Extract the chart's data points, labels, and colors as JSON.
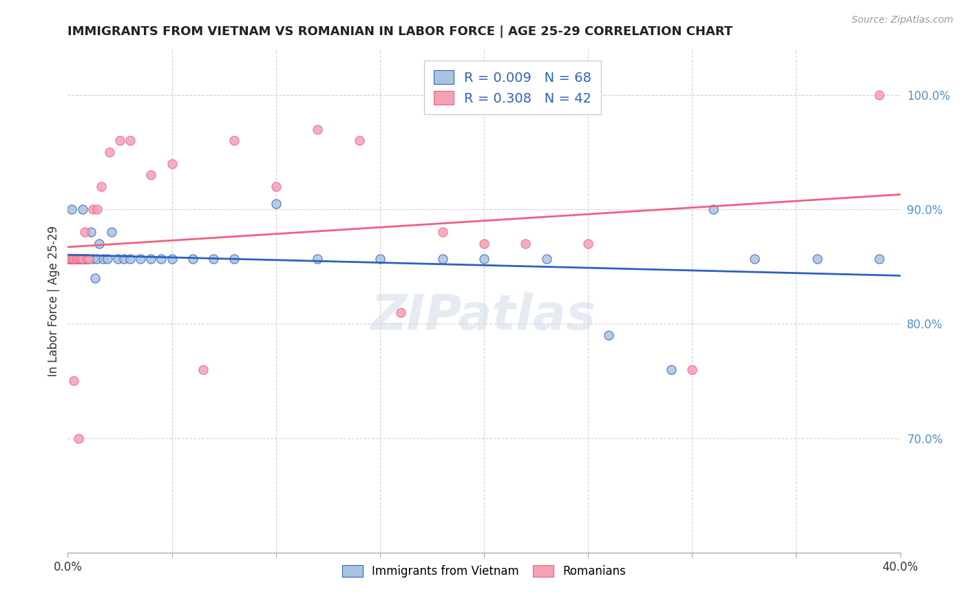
{
  "title": "IMMIGRANTS FROM VIETNAM VS ROMANIAN IN LABOR FORCE | AGE 25-29 CORRELATION CHART",
  "source": "Source: ZipAtlas.com",
  "ylabel": "In Labor Force | Age 25-29",
  "xlim": [
    0.0,
    0.4
  ],
  "ylim": [
    0.6,
    1.04
  ],
  "xticks": [
    0.0,
    0.05,
    0.1,
    0.15,
    0.2,
    0.25,
    0.3,
    0.35,
    0.4
  ],
  "xtick_labels": [
    "0.0%",
    "",
    "",
    "",
    "",
    "",
    "",
    "",
    "40.0%"
  ],
  "yticks_right": [
    0.7,
    0.8,
    0.9,
    1.0
  ],
  "ytick_right_labels": [
    "70.0%",
    "80.0%",
    "90.0%",
    "100.0%"
  ],
  "vietnam_color": "#a8c4e0",
  "romania_color": "#f4a0b5",
  "vietnam_line_color": "#3060c0",
  "romania_line_color": "#f06080",
  "legend_R_vietnam": "0.009",
  "legend_N_vietnam": "68",
  "legend_R_romania": "0.308",
  "legend_N_romania": "42",
  "watermark": "ZIPatlas",
  "vietnam_x": [
    0.0,
    0.001,
    0.001,
    0.001,
    0.001,
    0.001,
    0.001,
    0.001,
    0.001,
    0.002,
    0.002,
    0.002,
    0.002,
    0.002,
    0.002,
    0.002,
    0.002,
    0.003,
    0.003,
    0.003,
    0.003,
    0.003,
    0.004,
    0.004,
    0.004,
    0.004,
    0.005,
    0.005,
    0.005,
    0.006,
    0.006,
    0.006,
    0.007,
    0.007,
    0.008,
    0.008,
    0.009,
    0.01,
    0.011,
    0.012,
    0.013,
    0.014,
    0.015,
    0.017,
    0.019,
    0.021,
    0.024,
    0.027,
    0.03,
    0.035,
    0.04,
    0.045,
    0.05,
    0.06,
    0.07,
    0.08,
    0.1,
    0.12,
    0.15,
    0.18,
    0.2,
    0.23,
    0.26,
    0.29,
    0.31,
    0.33,
    0.36,
    0.39
  ],
  "vietnam_y": [
    0.857,
    0.857,
    0.857,
    0.857,
    0.857,
    0.857,
    0.857,
    0.857,
    0.857,
    0.857,
    0.857,
    0.857,
    0.857,
    0.857,
    0.857,
    0.9,
    0.857,
    0.857,
    0.857,
    0.857,
    0.857,
    0.857,
    0.857,
    0.857,
    0.857,
    0.857,
    0.857,
    0.857,
    0.857,
    0.857,
    0.857,
    0.857,
    0.857,
    0.9,
    0.857,
    0.857,
    0.857,
    0.857,
    0.88,
    0.857,
    0.84,
    0.857,
    0.87,
    0.857,
    0.857,
    0.88,
    0.857,
    0.857,
    0.857,
    0.857,
    0.857,
    0.857,
    0.857,
    0.857,
    0.857,
    0.857,
    0.905,
    0.857,
    0.857,
    0.857,
    0.857,
    0.857,
    0.79,
    0.76,
    0.9,
    0.857,
    0.857,
    0.857
  ],
  "romania_x": [
    0.001,
    0.001,
    0.001,
    0.002,
    0.002,
    0.002,
    0.002,
    0.002,
    0.003,
    0.003,
    0.003,
    0.003,
    0.004,
    0.004,
    0.005,
    0.005,
    0.006,
    0.006,
    0.007,
    0.008,
    0.009,
    0.01,
    0.012,
    0.014,
    0.016,
    0.02,
    0.025,
    0.03,
    0.04,
    0.05,
    0.065,
    0.08,
    0.1,
    0.12,
    0.14,
    0.16,
    0.18,
    0.2,
    0.22,
    0.25,
    0.3,
    0.39
  ],
  "romania_y": [
    0.857,
    0.857,
    0.857,
    0.857,
    0.857,
    0.857,
    0.857,
    0.857,
    0.857,
    0.857,
    0.857,
    0.75,
    0.857,
    0.857,
    0.857,
    0.7,
    0.857,
    0.857,
    0.857,
    0.88,
    0.857,
    0.857,
    0.9,
    0.9,
    0.92,
    0.95,
    0.96,
    0.96,
    0.93,
    0.94,
    0.76,
    0.96,
    0.92,
    0.97,
    0.96,
    0.81,
    0.88,
    0.87,
    0.87,
    0.87,
    0.76,
    1.0
  ]
}
